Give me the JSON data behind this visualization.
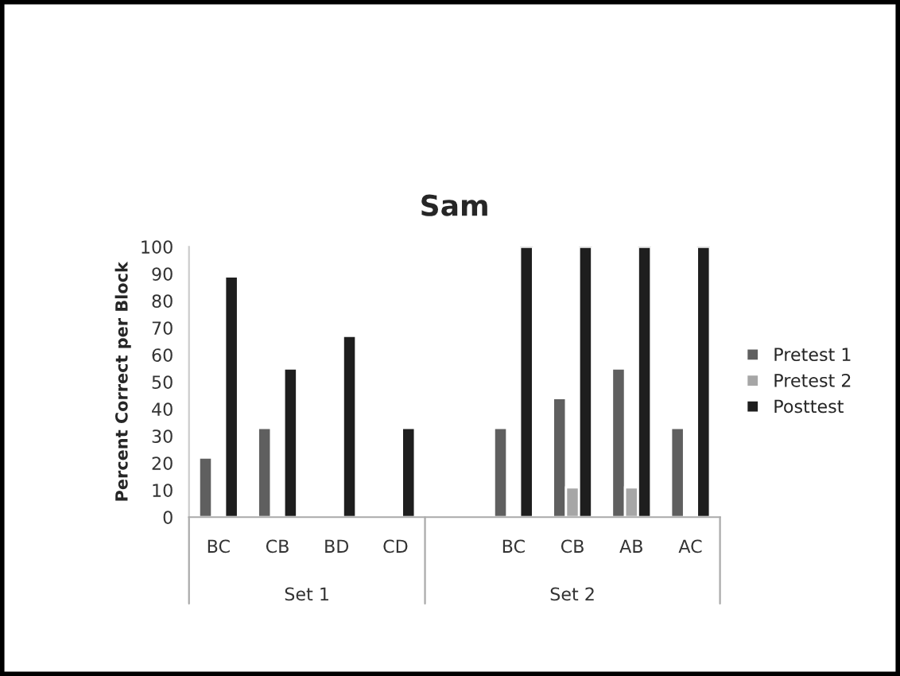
{
  "chart_data": {
    "type": "bar",
    "title": "Sam",
    "ylabel": "Percent Correct per Block",
    "categories": [
      "BC",
      "CB",
      "BD",
      "CD",
      null,
      "BC",
      "CB",
      "AB",
      "AC"
    ],
    "series": [
      {
        "name": "Pretest 1",
        "color": "#5f5f5f",
        "values": [
          22,
          33,
          null,
          null,
          null,
          33,
          44,
          55,
          33
        ]
      },
      {
        "name": "Pretest 2",
        "color": "#a6a6a6",
        "values": [
          null,
          null,
          null,
          null,
          null,
          null,
          11,
          11,
          null
        ]
      },
      {
        "name": "Posttest",
        "color": "#1e1e1e",
        "values": [
          89,
          55,
          67,
          33,
          null,
          100,
          100,
          100,
          100
        ]
      }
    ],
    "ylim": [
      0,
      100
    ],
    "yticks": [
      0,
      10,
      20,
      30,
      40,
      50,
      60,
      70,
      80,
      90,
      100
    ],
    "annotations": [
      "Set 1",
      "Set 2"
    ],
    "legend": "right",
    "grid": false
  }
}
